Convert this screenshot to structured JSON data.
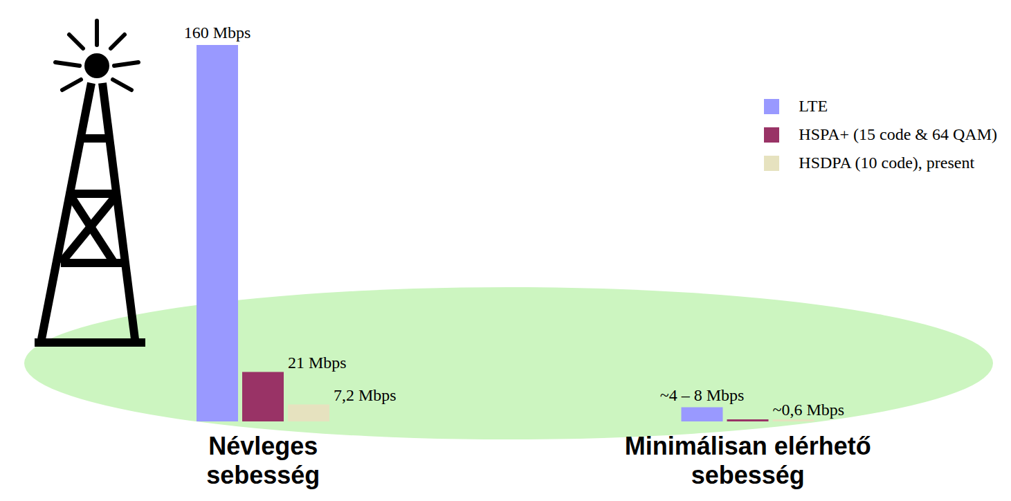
{
  "chart_data": {
    "type": "bar",
    "categories": [
      "Névleges sebesség",
      "Minimálisan elérhető sebesség"
    ],
    "series": [
      {
        "name": "LTE",
        "color": "#9999ff",
        "values": [
          160,
          6
        ],
        "value_labels": [
          "160 Mbps",
          "~4 – 8 Mbps"
        ]
      },
      {
        "name": "HSPA+ (15 code & 64 QAM)",
        "color": "#993366",
        "values": [
          21,
          0.6
        ],
        "value_labels": [
          "21 Mbps",
          "~0,6 Mbps"
        ]
      },
      {
        "name": "HSDPA (10 code), present",
        "color": "#e6e2bf",
        "values": [
          7.2,
          0.3
        ],
        "value_labels": [
          "7,2 Mbps",
          null
        ]
      }
    ],
    "data_labels": true,
    "legend": "top-right",
    "tick_labels": "x",
    "grid": false
  }
}
